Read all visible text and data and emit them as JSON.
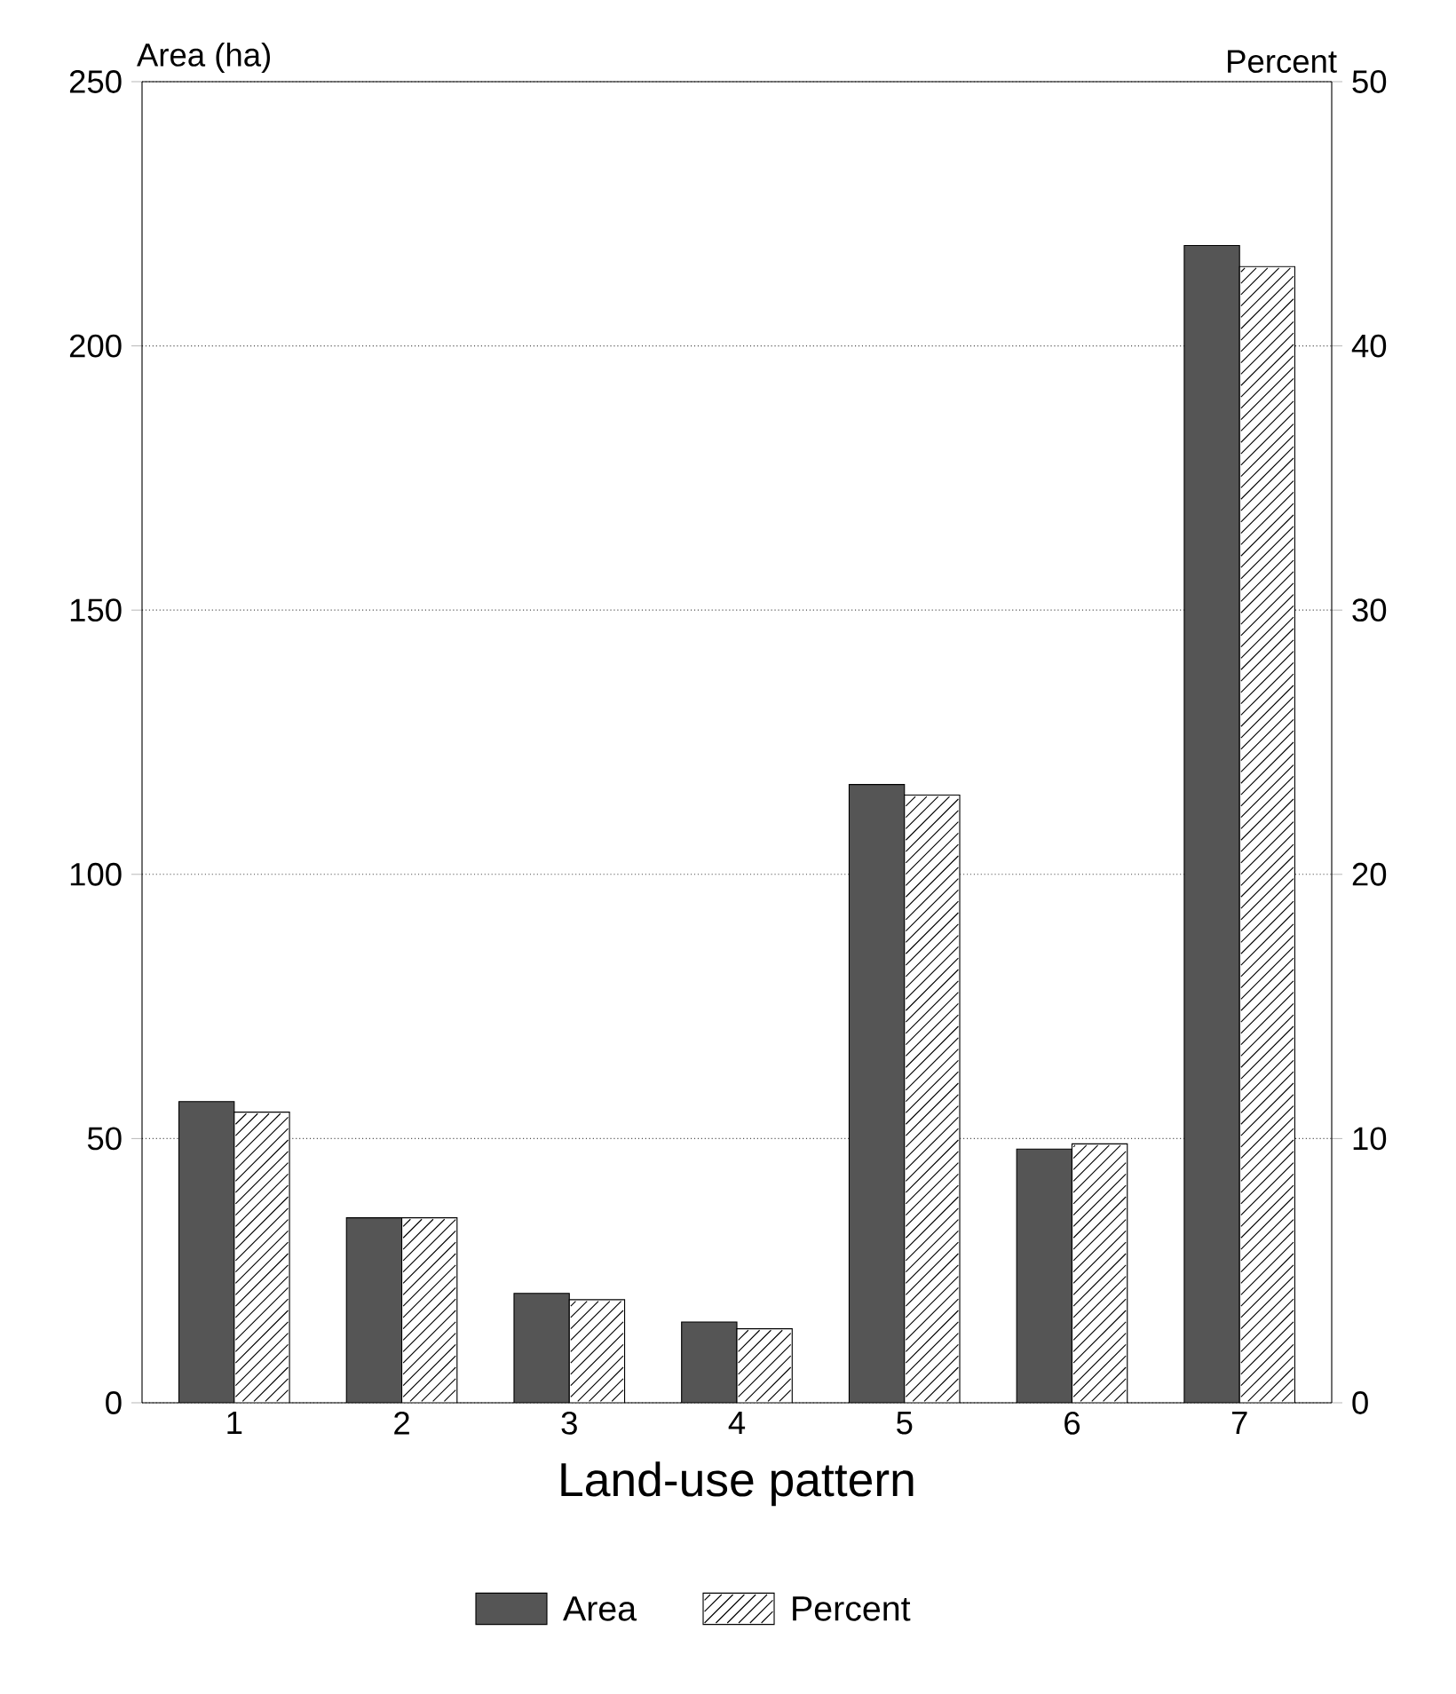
{
  "chart_data": {
    "type": "bar",
    "xlabel": "Land-use pattern",
    "ylabel": "Area (ha)",
    "y2label": "Percent",
    "categories": [
      "1",
      "2",
      "3",
      "4",
      "5",
      "6",
      "7"
    ],
    "series": [
      {
        "name": "Area",
        "color": "#555555",
        "values": [
          57,
          35,
          20.7,
          15.3,
          117,
          48,
          219
        ]
      },
      {
        "name": "Percent",
        "color": "#ffffff",
        "axis": "y2",
        "values": [
          11,
          7,
          3.9,
          2.8,
          23,
          9.8,
          43
        ]
      }
    ],
    "ylim": [
      0,
      250
    ],
    "yticks": [
      0,
      50,
      100,
      150,
      200,
      250
    ],
    "y2lim": [
      0,
      50
    ],
    "y2ticks": [
      0,
      10,
      20,
      30,
      40,
      50
    ],
    "grid": "y",
    "legend": "bottom"
  }
}
